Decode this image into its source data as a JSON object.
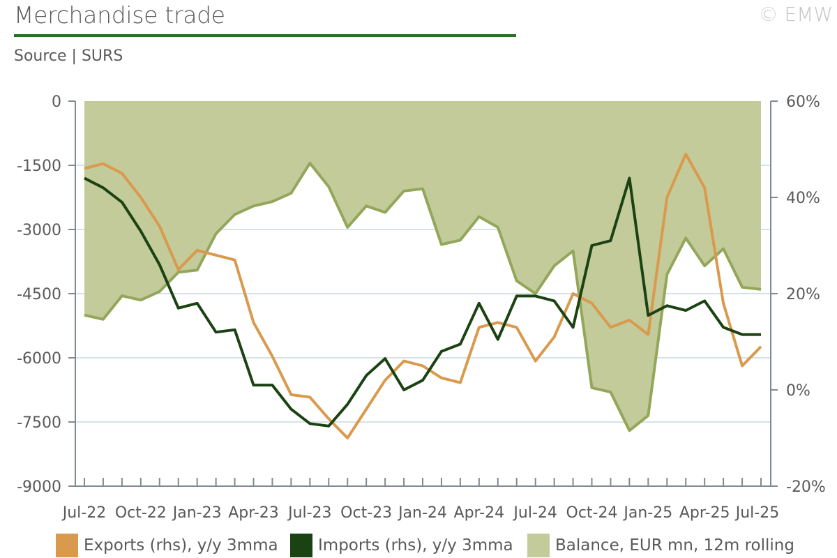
{
  "header": {
    "title": "Merchandise trade",
    "copyright": "© EMW",
    "source": "Source | SURS"
  },
  "colors": {
    "exports": "#d99a4e",
    "imports": "#1b4212",
    "balance_fill": "#c3cb9a",
    "balance_line": "#93a65a",
    "title_rule": "#2f6b2a",
    "grid": "#d5e3e8",
    "axis": "#7f8a92"
  },
  "legend": [
    {
      "label": "Exports (rhs), y/y 3mma",
      "color": "#d99a4e"
    },
    {
      "label": "Imports (rhs), y/y 3mma",
      "color": "#1b4212"
    },
    {
      "label": "Balance, EUR mn, 12m rolling",
      "color": "#c3cb9a"
    }
  ],
  "chart_data": {
    "type": "line",
    "x_labels": [
      "Jul-22",
      "Oct-22",
      "Jan-23",
      "Apr-23",
      "Jul-23",
      "Oct-23",
      "Jan-24",
      "Apr-24",
      "Jul-24",
      "Oct-24",
      "Jan-25",
      "Apr-25",
      "Jul-25"
    ],
    "left_axis": {
      "ticks": [
        "0",
        "-1500",
        "-3000",
        "-4500",
        "-6000",
        "-7500",
        "-9000"
      ],
      "range": [
        -9000,
        0
      ]
    },
    "right_axis": {
      "ticks": [
        "60%",
        "40%",
        "20%",
        "0%",
        "-20%"
      ],
      "range": [
        -20,
        60
      ]
    },
    "x": [
      "Jul-22",
      "Aug-22",
      "Sep-22",
      "Oct-22",
      "Nov-22",
      "Dec-22",
      "Jan-23",
      "Feb-23",
      "Mar-23",
      "Apr-23",
      "May-23",
      "Jun-23",
      "Jul-23",
      "Aug-23",
      "Sep-23",
      "Oct-23",
      "Nov-23",
      "Dec-23",
      "Jan-24",
      "Feb-24",
      "Mar-24",
      "Apr-24",
      "May-24",
      "Jun-24",
      "Jul-24",
      "Aug-24",
      "Sep-24",
      "Oct-24",
      "Nov-24",
      "Dec-24",
      "Jan-25",
      "Feb-25",
      "Mar-25",
      "Apr-25",
      "May-25",
      "Jun-25",
      "Jul-25"
    ],
    "series": [
      {
        "name": "Balance, EUR mn, 12m rolling",
        "axis": "left",
        "kind": "area",
        "values": [
          -5000,
          -5100,
          -4550,
          -4650,
          -4450,
          -4000,
          -3950,
          -3100,
          -2650,
          -2450,
          -2350,
          -2150,
          -1450,
          -2000,
          -2950,
          -2450,
          -2600,
          -2100,
          -2050,
          -3350,
          -3250,
          -2700,
          -2950,
          -4200,
          -4500,
          -3850,
          -3500,
          -6700,
          -6800,
          -7700,
          -7350,
          -4050,
          -3200,
          -3850,
          -3450,
          -4350,
          -4400
        ]
      },
      {
        "name": "Exports (rhs), y/y 3mma",
        "axis": "right",
        "kind": "line",
        "values": [
          46,
          47,
          45,
          40,
          34,
          25,
          29,
          28,
          27,
          14,
          7,
          -1,
          -1.5,
          -6,
          -10,
          -4,
          2,
          6,
          5,
          2.5,
          1.5,
          13,
          14,
          13,
          6,
          11,
          20,
          18,
          13,
          14.5,
          11.5,
          40,
          49,
          42,
          18,
          5,
          9
        ]
      },
      {
        "name": "Imports (rhs), y/y 3mma",
        "axis": "right",
        "kind": "line",
        "values": [
          44,
          42,
          39,
          33,
          26,
          17,
          18,
          12,
          12.5,
          1,
          1,
          -4,
          -7,
          -7.5,
          -3,
          3,
          6.5,
          0,
          2,
          8,
          9.5,
          18,
          10.5,
          19.5,
          19.5,
          18.5,
          13,
          30,
          31,
          44,
          15.5,
          17.5,
          16.5,
          18.5,
          13,
          11.5,
          11.5
        ]
      }
    ]
  }
}
